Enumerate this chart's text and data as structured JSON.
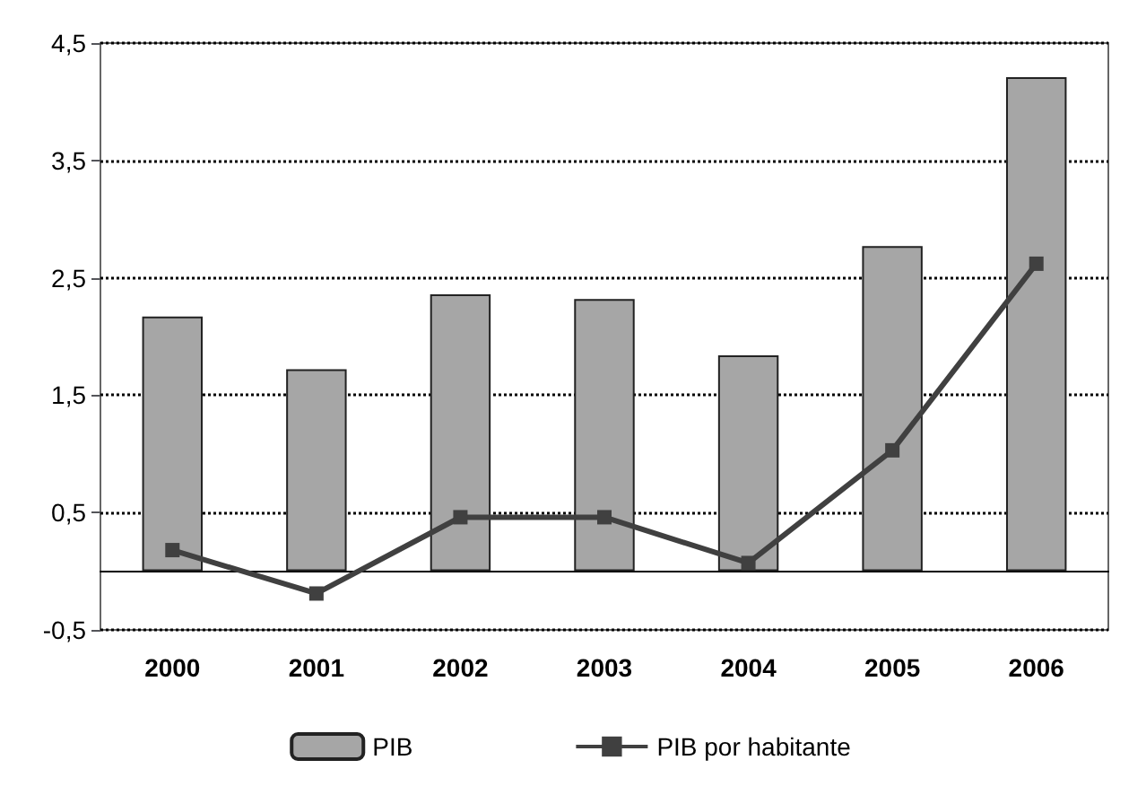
{
  "chart_data": {
    "type": "bar",
    "categories": [
      "2000",
      "2001",
      "2002",
      "2003",
      "2004",
      "2005",
      "2006"
    ],
    "series": [
      {
        "name": "PIB",
        "color": "#a6a6a6",
        "values": [
          2.17,
          1.72,
          2.36,
          2.32,
          1.84,
          2.77,
          4.21
        ]
      },
      {
        "name": "PIB por habitante",
        "type": "line",
        "color": "#404040",
        "values": [
          0.18,
          -0.19,
          0.46,
          0.46,
          0.07,
          1.03,
          2.62
        ]
      }
    ],
    "ylim": [
      -0.5,
      4.5
    ],
    "yticks": [
      {
        "value": -0.5,
        "label": "-0,5"
      },
      {
        "value": 0.5,
        "label": "0,5"
      },
      {
        "value": 1.5,
        "label": "1,5"
      },
      {
        "value": 2.5,
        "label": "2,5"
      },
      {
        "value": 3.5,
        "label": "3,5"
      },
      {
        "value": 4.5,
        "label": "4,5"
      }
    ],
    "grid": "y",
    "legend": "bottom",
    "marker": "square",
    "line_style": "solid"
  }
}
